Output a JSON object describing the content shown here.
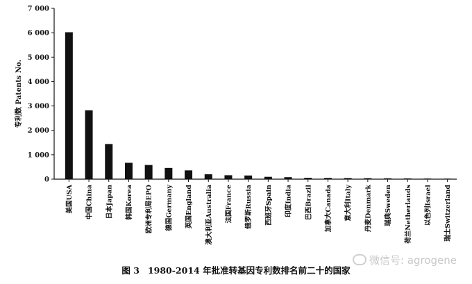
{
  "chart_data": {
    "type": "bar",
    "title": "",
    "ylabel": "专利数 Patents No.",
    "xlabel": "",
    "ylim": [
      0,
      7000
    ],
    "yticks": [
      0,
      1000,
      2000,
      3000,
      4000,
      5000,
      6000,
      7000
    ],
    "ytick_labels": [
      "0",
      "1 000",
      "2 000",
      "3 000",
      "4 000",
      "5 000",
      "6 000",
      "7 000"
    ],
    "categories": [
      "美国USA",
      "中国China",
      "日本Japan",
      "韩国Korea",
      "欧洲专利局EPO",
      "德国Germany",
      "英国England",
      "澳大利亚Australia",
      "法国France",
      "俄罗斯Russia",
      "西班牙Spain",
      "印度India",
      "巴西Brazil",
      "加拿大Canada",
      "意大利Italy",
      "丹麦Denmark",
      "瑞典Sweden",
      "荷兰Netherlands",
      "以色列Israel",
      "瑞士Switzerland"
    ],
    "values": [
      6020,
      2820,
      1440,
      670,
      580,
      460,
      360,
      200,
      160,
      150,
      95,
      80,
      55,
      50,
      45,
      40,
      35,
      30,
      25,
      20
    ],
    "bar_color": "#111111",
    "grid": false,
    "legend": "none"
  },
  "caption": {
    "figure_label": "图 3",
    "text": "1980-2014 年批准转基因专利数排名前二十的国家"
  },
  "watermark": {
    "text": "微信号: agrogene",
    "color": "#c8c8c8"
  }
}
